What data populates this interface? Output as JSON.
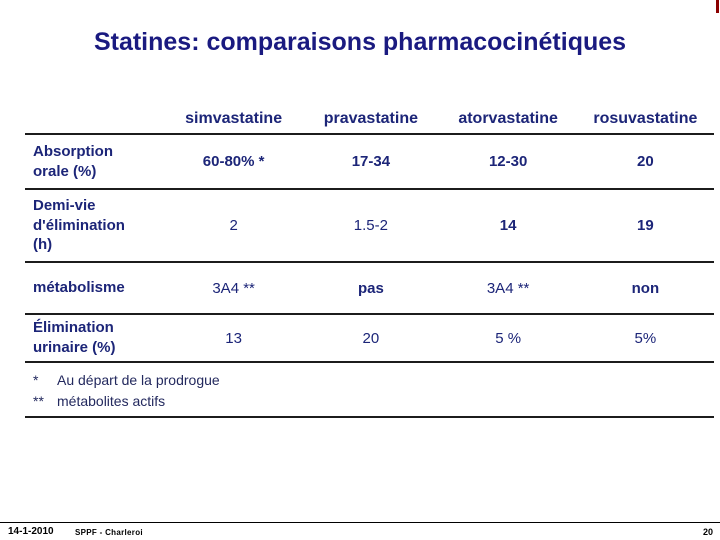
{
  "slide": {
    "title": "Statines: comparaisons pharmacocinétiques",
    "accent_color": "#8b0000",
    "text_color": "#1b1f7a"
  },
  "table": {
    "columns": [
      "simvastatine",
      "pravastatine",
      "atorvastatine",
      "rosuvastatine"
    ],
    "rows": [
      {
        "label": "Absorption orale (%)",
        "values": [
          "60-80% *",
          "17-34",
          "12-30",
          "20"
        ]
      },
      {
        "label": "Demi-vie d'élimination (h)",
        "values": [
          "2",
          "1.5-2",
          "14",
          "19"
        ]
      },
      {
        "label": "métabolisme",
        "values": [
          "3A4 **",
          "pas",
          "3A4 **",
          "non"
        ]
      },
      {
        "label": "Élimination urinaire (%)",
        "values": [
          "13",
          "20",
          "5 %",
          "5%"
        ]
      }
    ],
    "footnotes": [
      {
        "marker": "*",
        "text": "Au départ de la prodrogue"
      },
      {
        "marker": "**",
        "text": "métabolites actifs"
      }
    ]
  },
  "footer": {
    "date": "14-1-2010",
    "credit": "SPPF - Charleroi",
    "page": "20"
  }
}
